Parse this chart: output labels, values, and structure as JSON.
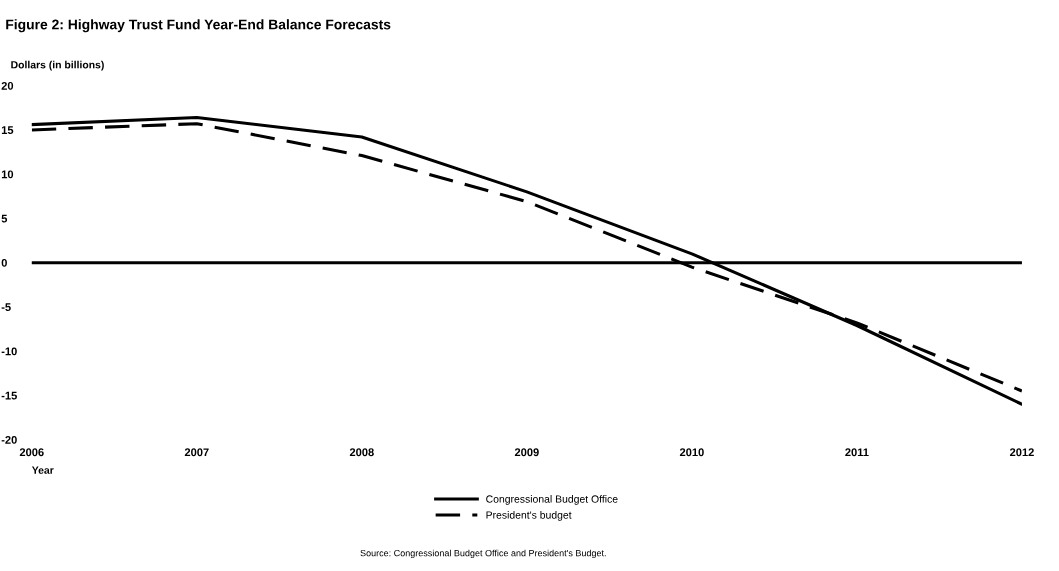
{
  "chart_data": {
    "type": "line",
    "title": "Figure 2: Highway Trust Fund Year-End Balance Forecasts",
    "ylabel": "Dollars (in billions)",
    "xlabel": "Year",
    "x": [
      2006,
      2007,
      2008,
      2009,
      2010,
      2011,
      2012
    ],
    "series": [
      {
        "name": "Congressional Budget Office",
        "color": "#000000",
        "line_style": "solid",
        "values": [
          15.6,
          16.4,
          14.2,
          8.0,
          1.0,
          -7.1,
          -16.0
        ]
      },
      {
        "name": "President's budget",
        "color": "#000000",
        "line_style": "dashed",
        "values": [
          15.0,
          15.7,
          12.1,
          6.9,
          -0.5,
          -6.8,
          -14.5
        ]
      }
    ],
    "xlim": [
      2006,
      2012
    ],
    "xticks": [
      2006,
      2007,
      2008,
      2009,
      2010,
      2011,
      2012
    ],
    "ylim": [
      -20,
      20
    ],
    "yticks": [
      -20,
      -15,
      -10,
      -5,
      0,
      5,
      10,
      15,
      20
    ],
    "ref_lines": [
      {
        "axis": "y",
        "value": 0,
        "color": "#000000"
      }
    ],
    "grid": false,
    "legend": "bottom",
    "marker": "none",
    "annotations": [
      "Source: Congressional Budget Office and President's Budget."
    ]
  }
}
